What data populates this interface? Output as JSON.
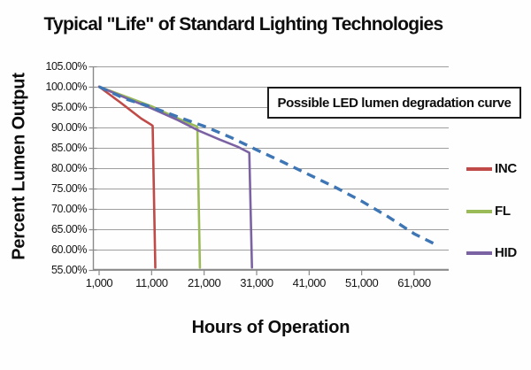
{
  "chart_data": {
    "type": "line",
    "title": "Typical \"Life\" of Standard Lighting Technologies",
    "xlabel": "Hours of Operation",
    "ylabel": "Percent Lumen Output",
    "annotation": "Possible LED lumen degradation curve",
    "x_tick_labels": [
      "1,000",
      "11,000",
      "21,000",
      "31,000",
      "41,000",
      "51,000",
      "61,000"
    ],
    "y_tick_labels": [
      "105.00%",
      "100.00%",
      "95.00%",
      "90.00%",
      "85.00%",
      "80.00%",
      "75.00%",
      "70.00%",
      "65.00%",
      "60.00%",
      "55.00%"
    ],
    "xlim": [
      0,
      67500
    ],
    "ylim": [
      55,
      105
    ],
    "grid": true,
    "legend_position": "right",
    "colors": {
      "inc": "#bf4a47",
      "fl": "#9bbb59",
      "hid": "#7b62a3",
      "led": "#3e76b5",
      "gridline": "#9e9e9e",
      "axis": "#8a8a8a"
    },
    "series": [
      {
        "name": "INC",
        "color": "#bf4a47",
        "style": "solid",
        "in_legend": true,
        "points": [
          [
            1000,
            100
          ],
          [
            5000,
            96.2
          ],
          [
            9000,
            92.2
          ],
          [
            11000,
            90.6
          ],
          [
            11200,
            90.4
          ],
          [
            11700,
            55.6
          ]
        ]
      },
      {
        "name": "FL",
        "color": "#9bbb59",
        "style": "solid",
        "in_legend": true,
        "points": [
          [
            1000,
            100
          ],
          [
            6000,
            97.6
          ],
          [
            11000,
            95.2
          ],
          [
            15000,
            92.8
          ],
          [
            18000,
            91.1
          ],
          [
            19500,
            90.3
          ],
          [
            19700,
            90.1
          ],
          [
            20200,
            55.6
          ]
        ]
      },
      {
        "name": "HID",
        "color": "#7b62a3",
        "style": "solid",
        "in_legend": true,
        "points": [
          [
            1000,
            100
          ],
          [
            6000,
            97.3
          ],
          [
            11000,
            94.7
          ],
          [
            16000,
            91.8
          ],
          [
            20000,
            89.2
          ],
          [
            24000,
            87.0
          ],
          [
            27500,
            85.2
          ],
          [
            29300,
            84.0
          ],
          [
            29600,
            83.8
          ],
          [
            30100,
            55.6
          ]
        ]
      },
      {
        "name": "LED",
        "color": "#3e76b5",
        "style": "dashed",
        "in_legend": false,
        "points": [
          [
            1000,
            100
          ],
          [
            6000,
            97.0
          ],
          [
            11000,
            95.0
          ],
          [
            16000,
            92.6
          ],
          [
            21000,
            90.3
          ],
          [
            26000,
            87.6
          ],
          [
            31000,
            84.5
          ],
          [
            36000,
            81.5
          ],
          [
            41000,
            78.4
          ],
          [
            46000,
            75.3
          ],
          [
            51000,
            71.9
          ],
          [
            56000,
            68.1
          ],
          [
            61000,
            63.9
          ],
          [
            65500,
            61.0
          ]
        ]
      }
    ]
  }
}
